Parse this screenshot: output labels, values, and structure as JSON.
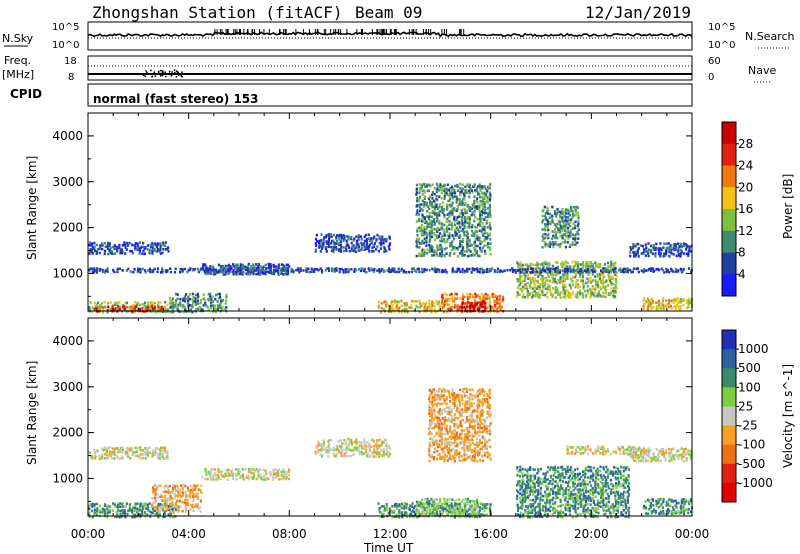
{
  "header": {
    "station": "Zhongshan Station (fitACF)",
    "beam": "Beam 09",
    "date": "12/Jan/2019"
  },
  "strip_labels": {
    "nsky": "N.Sky",
    "nsearch": "N.Search",
    "freq_top": "Freq.",
    "freq_unit": "[MHz]",
    "nave": "Nave",
    "cpid": "CPID",
    "nsky_ticks": [
      "10^5",
      "10^0"
    ],
    "nsearch_ticks": [
      "10^5",
      "10^0"
    ],
    "freq_ticks": [
      "18",
      "8"
    ],
    "nave_ticks": [
      "60",
      "0"
    ]
  },
  "cpid_text": "normal (fast stereo) 153",
  "x_ticks": [
    "00:00",
    "04:00",
    "08:00",
    "12:00",
    "16:00",
    "20:00",
    "00:00"
  ],
  "x_label": "Time UT",
  "y_label": "Slant Range [km]",
  "y_ticks": [
    "1000",
    "2000",
    "3000",
    "4000"
  ],
  "chart_data": [
    {
      "type": "heatmap",
      "title": "Power [dB]",
      "ylabel": "Slant Range [km]",
      "xlabel": "Time UT",
      "xlim": [
        "00:00",
        "24:00"
      ],
      "ylim": [
        180,
        4500
      ],
      "colorbar_label": "Power [dB]",
      "colorbar_ticks": [
        "4",
        "8",
        "12",
        "16",
        "20",
        "24",
        "28"
      ],
      "colorbar_colors": [
        "#1a1aff",
        "#1f3fa3",
        "#3f8a70",
        "#7ec03d",
        "#f3c015",
        "#f07a10",
        "#e02010",
        "#cc0000"
      ],
      "bands": [
        {
          "t0": 0.0,
          "t1": 3.2,
          "r0": 1450,
          "r1": 1720,
          "level": 1
        },
        {
          "t0": 0.0,
          "t1": 3.5,
          "r0": 180,
          "r1": 420,
          "level": 3
        },
        {
          "t0": 0.2,
          "t1": 3.0,
          "r0": 200,
          "r1": 330,
          "level": 6
        },
        {
          "t0": 3.2,
          "t1": 5.5,
          "r0": 180,
          "r1": 600,
          "level": 2
        },
        {
          "t0": 4.5,
          "t1": 8.0,
          "r0": 1000,
          "r1": 1250,
          "level": 1
        },
        {
          "t0": 9.0,
          "t1": 12.0,
          "r0": 1500,
          "r1": 1900,
          "level": 1
        },
        {
          "t0": 11.5,
          "t1": 14.0,
          "r0": 180,
          "r1": 450,
          "level": 4
        },
        {
          "t0": 13.0,
          "t1": 16.0,
          "r0": 1400,
          "r1": 3000,
          "level": 2
        },
        {
          "t0": 14.0,
          "t1": 16.5,
          "r0": 180,
          "r1": 600,
          "level": 5
        },
        {
          "t0": 14.8,
          "t1": 15.8,
          "r0": 200,
          "r1": 420,
          "level": 7
        },
        {
          "t0": 17.0,
          "t1": 21.0,
          "r0": 500,
          "r1": 1300,
          "level": 3
        },
        {
          "t0": 18.0,
          "t1": 19.5,
          "r0": 1600,
          "r1": 2500,
          "level": 2
        },
        {
          "t0": 21.5,
          "t1": 24.0,
          "r0": 1400,
          "r1": 1700,
          "level": 1
        },
        {
          "t0": 22.0,
          "t1": 24.0,
          "r0": 250,
          "r1": 500,
          "level": 4
        },
        {
          "t0": 0.0,
          "t1": 24.0,
          "r0": 1050,
          "r1": 1150,
          "level": 1
        }
      ]
    },
    {
      "type": "heatmap",
      "title": "Velocity [m s^-1]",
      "ylabel": "Slant Range [km]",
      "xlabel": "Time UT",
      "xlim": [
        "00:00",
        "24:00"
      ],
      "ylim": [
        180,
        4500
      ],
      "colorbar_label": "Velocity [m s^-1]",
      "colorbar_ticks": [
        "1000",
        "500",
        "100",
        "25",
        "-25",
        "-100",
        "-500",
        "-1000"
      ],
      "colorbar_colors": [
        "#1f2fb8",
        "#2e5fa0",
        "#3a8a6c",
        "#7ad03a",
        "#c8c8c0",
        "#f5a020",
        "#f07010",
        "#e02010",
        "#e00000"
      ],
      "bands": [
        {
          "t0": 0.0,
          "t1": 3.2,
          "r0": 1450,
          "r1": 1720,
          "level": 4
        },
        {
          "t0": 0.0,
          "t1": 3.5,
          "r0": 180,
          "r1": 500,
          "level": 2
        },
        {
          "t0": 2.5,
          "t1": 4.5,
          "r0": 300,
          "r1": 900,
          "level": 5
        },
        {
          "t0": 4.5,
          "t1": 8.0,
          "r0": 1000,
          "r1": 1250,
          "level": 4
        },
        {
          "t0": 9.0,
          "t1": 12.0,
          "r0": 1500,
          "r1": 1900,
          "level": 4
        },
        {
          "t0": 11.5,
          "t1": 16.0,
          "r0": 180,
          "r1": 500,
          "level": 2
        },
        {
          "t0": 13.5,
          "t1": 16.0,
          "r0": 1400,
          "r1": 3000,
          "level": 5
        },
        {
          "t0": 13.0,
          "t1": 15.5,
          "r0": 200,
          "r1": 600,
          "level": 3
        },
        {
          "t0": 17.0,
          "t1": 21.5,
          "r0": 180,
          "r1": 1300,
          "level": 2
        },
        {
          "t0": 19.0,
          "t1": 22.0,
          "r0": 1550,
          "r1": 1750,
          "level": 4
        },
        {
          "t0": 21.5,
          "t1": 24.0,
          "r0": 1400,
          "r1": 1700,
          "level": 4
        },
        {
          "t0": 22.0,
          "t1": 24.0,
          "r0": 250,
          "r1": 600,
          "level": 2
        }
      ]
    }
  ]
}
